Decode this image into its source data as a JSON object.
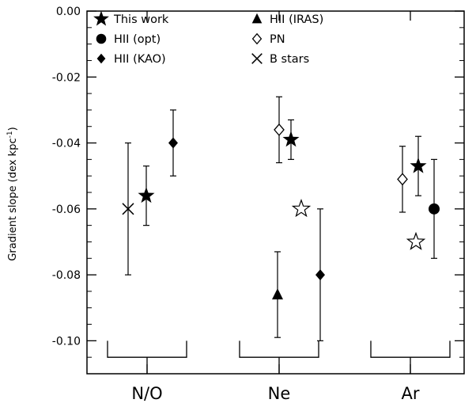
{
  "chart_data": {
    "type": "scatter",
    "title": "",
    "xlabel": "",
    "ylabel": "Gradient slope (dex kpc",
    "ylabel_superscript": "-1",
    "ylabel_close": ")",
    "ylim": [
      -0.11,
      0.0
    ],
    "y_ticks": [
      0.0,
      -0.02,
      -0.04,
      -0.06,
      -0.08,
      -0.1
    ],
    "y_tick_labels": [
      "0.00",
      "-0.02",
      "-0.04",
      "-0.06",
      "-0.08",
      "-0.10"
    ],
    "grid": false,
    "legend_position": "top-left",
    "categories": [
      "N/O",
      "Ne",
      "Ar"
    ],
    "legend": [
      {
        "name": "This work",
        "marker": "star-filled"
      },
      {
        "name": "HII (opt)",
        "marker": "circle-filled"
      },
      {
        "name": "HII (KAO)",
        "marker": "diamond-filled"
      },
      {
        "name": "HII (IRAS)",
        "marker": "triangle-filled"
      },
      {
        "name": "PN",
        "marker": "diamond-open"
      },
      {
        "name": "B stars",
        "marker": "cross"
      }
    ],
    "series": [
      {
        "name": "This work",
        "marker": "star-filled",
        "points": [
          {
            "category": "N/O",
            "offset": -0.01,
            "y": -0.056,
            "err_low": -0.065,
            "err_high": -0.047
          },
          {
            "category": "Ne",
            "offset": 0.15,
            "y": -0.039,
            "err_low": -0.045,
            "err_high": -0.033
          },
          {
            "category": "Ar",
            "offset": 0.1,
            "y": -0.047,
            "err_low": -0.056,
            "err_high": -0.038
          }
        ]
      },
      {
        "name": "",
        "marker": "star-open",
        "points": [
          {
            "category": "Ne",
            "offset": 0.28,
            "y": -0.06
          },
          {
            "category": "Ar",
            "offset": 0.07,
            "y": -0.07
          }
        ]
      },
      {
        "name": "HII (opt)",
        "marker": "circle-filled",
        "points": [
          {
            "category": "Ar",
            "offset": 0.3,
            "y": -0.06,
            "err_low": -0.075,
            "err_high": -0.045
          }
        ]
      },
      {
        "name": "HII (KAO)",
        "marker": "diamond-filled",
        "points": [
          {
            "category": "N/O",
            "offset": 0.33,
            "y": -0.04,
            "err_low": -0.05,
            "err_high": -0.03
          },
          {
            "category": "Ne",
            "offset": 0.52,
            "y": -0.08,
            "err_low": -0.1,
            "err_high": -0.06
          }
        ]
      },
      {
        "name": "HII (IRAS)",
        "marker": "triangle-filled",
        "points": [
          {
            "category": "Ne",
            "offset": -0.02,
            "y": -0.086,
            "err_low": -0.099,
            "err_high": -0.073
          }
        ]
      },
      {
        "name": "PN",
        "marker": "diamond-open",
        "points": [
          {
            "category": "Ne",
            "offset": 0.0,
            "y": -0.036,
            "err_low": -0.046,
            "err_high": -0.026
          },
          {
            "category": "Ar",
            "offset": -0.1,
            "y": -0.051,
            "err_low": -0.061,
            "err_high": -0.041
          }
        ]
      },
      {
        "name": "B stars",
        "marker": "cross",
        "points": [
          {
            "category": "N/O",
            "offset": -0.24,
            "y": -0.06,
            "err_low": -0.08,
            "err_high": -0.04
          }
        ]
      }
    ]
  }
}
